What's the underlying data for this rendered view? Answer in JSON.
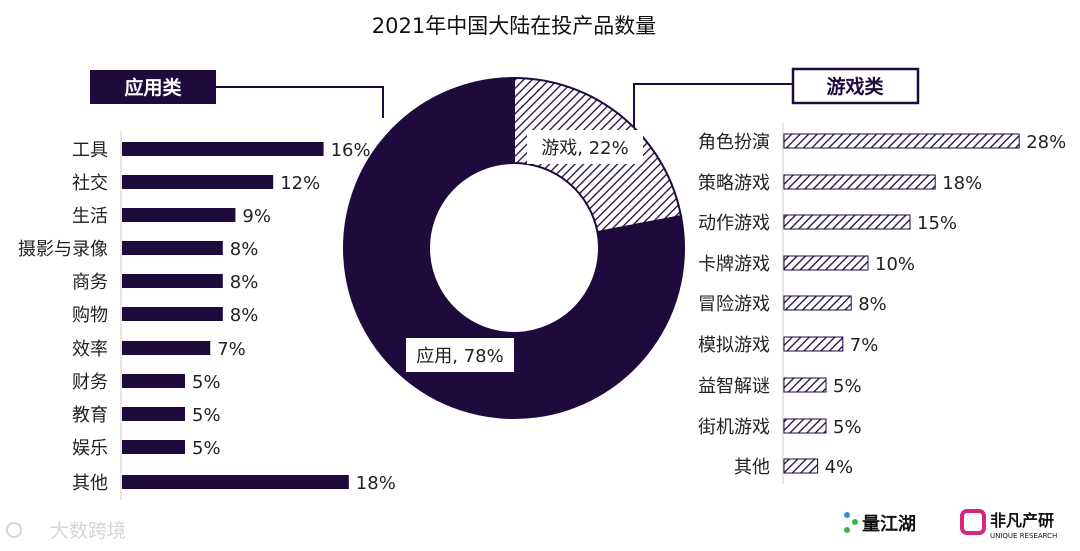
{
  "title": "2021年中国大陆在投产品数量",
  "colors": {
    "primary": "#1e0a3c",
    "background": "#ffffff"
  },
  "chart_data": [
    {
      "type": "pie",
      "variant": "donut",
      "labels": [
        "游戏",
        "应用"
      ],
      "values": [
        22,
        78
      ],
      "data_labels": [
        "游戏, 22%",
        "应用, 78%"
      ],
      "styles": [
        "hatched",
        "solid"
      ]
    },
    {
      "type": "bar",
      "orientation": "horizontal",
      "header": "应用类",
      "categories": [
        "工具",
        "社交",
        "生活",
        "摄影与录像",
        "商务",
        "购物",
        "效率",
        "财务",
        "教育",
        "娱乐",
        "其他"
      ],
      "values": [
        16,
        12,
        9,
        8,
        8,
        8,
        7,
        5,
        5,
        5,
        18
      ],
      "data_labels": [
        "16%",
        "12%",
        "9%",
        "8%",
        "8%",
        "8%",
        "7%",
        "5%",
        "5%",
        "5%",
        "18%"
      ],
      "style": "solid"
    },
    {
      "type": "bar",
      "orientation": "horizontal",
      "header": "游戏类",
      "categories": [
        "角色扮演",
        "策略游戏",
        "动作游戏",
        "卡牌游戏",
        "冒险游戏",
        "模拟游戏",
        "益智解谜",
        "街机游戏",
        "其他"
      ],
      "values": [
        28,
        18,
        15,
        10,
        8,
        7,
        5,
        5,
        4
      ],
      "data_labels": [
        "28%",
        "18%",
        "15%",
        "10%",
        "8%",
        "7%",
        "5%",
        "5%",
        "4%"
      ],
      "style": "hatched"
    }
  ],
  "footer": {
    "watermark": "大数跨境",
    "logo1": "量江湖",
    "logo2": "非凡产研",
    "logo2_sub": "UNIQUE RESEARCH"
  }
}
